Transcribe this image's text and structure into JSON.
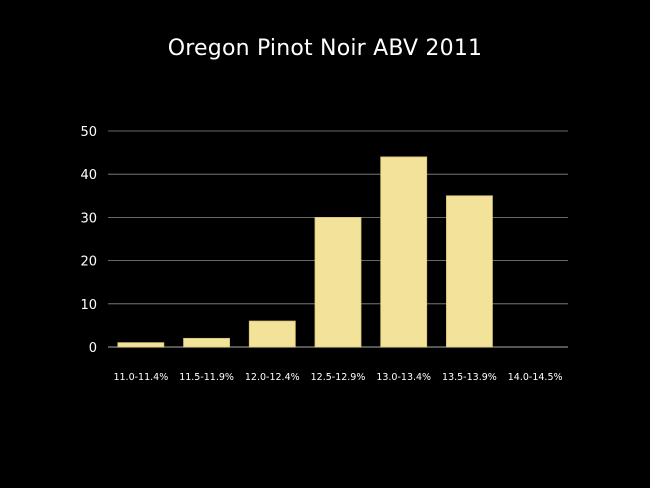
{
  "chart_data": {
    "type": "bar",
    "title": "Oregon Pinot Noir ABV 2011",
    "xlabel": "",
    "ylabel": "",
    "categories": [
      "11.0-11.4%",
      "11.5-11.9%",
      "12.0-12.4%",
      "12.5-12.9%",
      "13.0-13.4%",
      "13.5-13.9%",
      "14.0-14.5%"
    ],
    "values": [
      1,
      2,
      6,
      30,
      44,
      35,
      0
    ],
    "ylim": [
      0,
      50
    ],
    "yticks": [
      0,
      10,
      20,
      30,
      40,
      50
    ],
    "grid": true,
    "legend": "none",
    "colors": {
      "background": "#000000",
      "bar_fill": "#f3e39a",
      "bar_stroke": "#d9c676",
      "text": "#ffffff",
      "grid": "#8a8a8a"
    }
  }
}
